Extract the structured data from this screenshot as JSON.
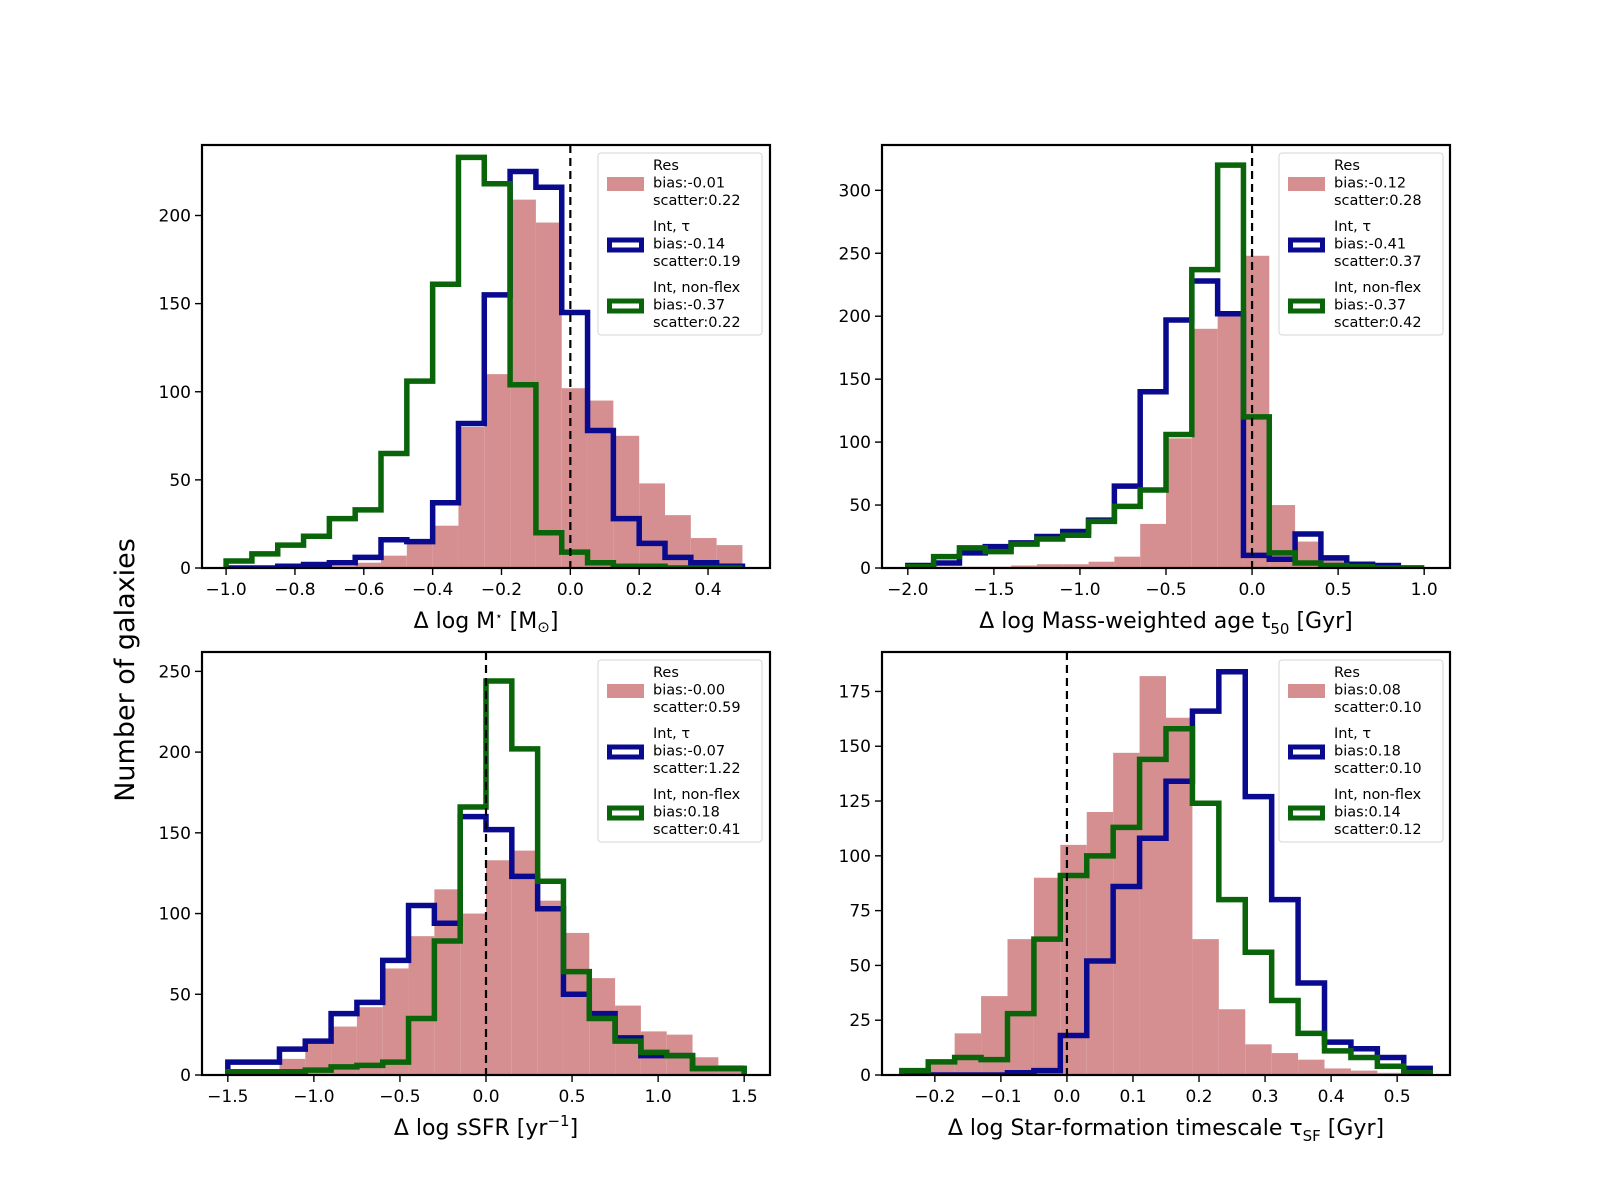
{
  "figure": {
    "ylabel": "Number of galaxies",
    "colors": {
      "res": "#d68f90",
      "int_tau": "#0a0a8f",
      "int_nonflex": "#0a640a"
    }
  },
  "chart_data": [
    {
      "type": "histogram",
      "id": "mstar",
      "xlabel": "Δ log M⋆ [M⊙]",
      "xlim": [
        -1.07,
        0.58
      ],
      "ylim": [
        0,
        240
      ],
      "xticks": [
        -1.0,
        -0.8,
        -0.6,
        -0.4,
        -0.2,
        0.0,
        0.2,
        0.4
      ],
      "xtick_labels": [
        "−1.0",
        "−0.8",
        "−0.6",
        "−0.4",
        "−0.2",
        "0.0",
        "0.2",
        "0.4"
      ],
      "yticks": [
        0,
        50,
        100,
        150,
        200
      ],
      "ytick_labels": [
        "0",
        "50",
        "100",
        "150",
        "200"
      ],
      "vline": 0.0,
      "bin_edges": [
        -1.0,
        -0.925,
        -0.85,
        -0.775,
        -0.7,
        -0.625,
        -0.55,
        -0.475,
        -0.4,
        -0.325,
        -0.25,
        -0.175,
        -0.1,
        -0.025,
        0.05,
        0.125,
        0.2,
        0.275,
        0.35,
        0.425,
        0.5
      ],
      "series": [
        {
          "name": "Res",
          "style": "filled",
          "color": "#d68f90",
          "bias": "bias:-0.01",
          "scatter": "scatter:0.22",
          "values": [
            0,
            0,
            0,
            0,
            1,
            3,
            7,
            14,
            24,
            80,
            110,
            209,
            196,
            102,
            95,
            75,
            48,
            30,
            17,
            13
          ]
        },
        {
          "name": "Int, τ",
          "style": "step",
          "color": "#0a0a8f",
          "bias": "bias:-0.14",
          "scatter": "scatter:0.19",
          "values": [
            0,
            0,
            1,
            2,
            3,
            6,
            16,
            15,
            37,
            82,
            155,
            225,
            216,
            145,
            78,
            28,
            14,
            6,
            3,
            1
          ]
        },
        {
          "name": "Int, non-flex",
          "style": "step",
          "color": "#0a640a",
          "bias": "bias:-0.37",
          "scatter": "scatter:0.22",
          "values": [
            4,
            8,
            13,
            18,
            28,
            33,
            65,
            106,
            161,
            233,
            218,
            104,
            20,
            9,
            3,
            1,
            1,
            0,
            0,
            0
          ]
        }
      ]
    },
    {
      "type": "histogram",
      "id": "age",
      "xlabel": "Δ log Mass-weighted age t50 [Gyr]",
      "xlim": [
        -2.15,
        1.15
      ],
      "ylim": [
        0,
        336
      ],
      "xticks": [
        -2.0,
        -1.5,
        -1.0,
        -0.5,
        0.0,
        0.5,
        1.0
      ],
      "xtick_labels": [
        "−2.0",
        "−1.5",
        "−1.0",
        "−0.5",
        "0.0",
        "0.5",
        "1.0"
      ],
      "yticks": [
        0,
        50,
        100,
        150,
        200,
        250,
        300
      ],
      "ytick_labels": [
        "0",
        "50",
        "100",
        "150",
        "200",
        "250",
        "300"
      ],
      "vline": 0.0,
      "bin_edges": [
        -2.0,
        -1.85,
        -1.7,
        -1.55,
        -1.4,
        -1.25,
        -1.1,
        -0.95,
        -0.8,
        -0.65,
        -0.5,
        -0.35,
        -0.2,
        -0.05,
        0.1,
        0.25,
        0.4,
        0.55,
        0.7,
        0.85,
        1.0
      ],
      "series": [
        {
          "name": "Res",
          "style": "filled",
          "color": "#d68f90",
          "bias": "bias:-0.12",
          "scatter": "scatter:0.28",
          "values": [
            0,
            1,
            1,
            1,
            2,
            3,
            3,
            5,
            9,
            35,
            103,
            190,
            200,
            248,
            50,
            21,
            8,
            5,
            3,
            1
          ]
        },
        {
          "name": "Int, τ",
          "style": "step",
          "color": "#0a0a8f",
          "bias": "bias:-0.41",
          "scatter": "scatter:0.37",
          "values": [
            2,
            4,
            12,
            17,
            20,
            25,
            29,
            38,
            65,
            140,
            197,
            228,
            202,
            10,
            7,
            27,
            8,
            3,
            2,
            0
          ]
        },
        {
          "name": "Int, non-flex",
          "style": "step",
          "color": "#0a640a",
          "bias": "bias:-0.37",
          "scatter": "scatter:0.42",
          "values": [
            1,
            9,
            16,
            13,
            19,
            23,
            26,
            37,
            49,
            62,
            106,
            237,
            320,
            120,
            12,
            4,
            2,
            1,
            0,
            0
          ]
        }
      ]
    },
    {
      "type": "histogram",
      "id": "ssfr",
      "xlabel": "Δ log sSFR [yr−1]",
      "xlim": [
        -1.65,
        1.65
      ],
      "ylim": [
        0,
        262
      ],
      "xticks": [
        -1.5,
        -1.0,
        -0.5,
        0.0,
        0.5,
        1.0,
        1.5
      ],
      "xtick_labels": [
        "−1.5",
        "−1.0",
        "−0.5",
        "0.0",
        "0.5",
        "1.0",
        "1.5"
      ],
      "yticks": [
        0,
        50,
        100,
        150,
        200,
        250
      ],
      "ytick_labels": [
        "0",
        "50",
        "100",
        "150",
        "200",
        "250"
      ],
      "vline": 0.0,
      "bin_edges": [
        -1.5,
        -1.35,
        -1.2,
        -1.05,
        -0.9,
        -0.75,
        -0.6,
        -0.45,
        -0.3,
        -0.15,
        0.0,
        0.15,
        0.3,
        0.45,
        0.6,
        0.75,
        0.9,
        1.05,
        1.2,
        1.35,
        1.5
      ],
      "series": [
        {
          "name": "Res",
          "style": "filled",
          "color": "#d68f90",
          "bias": "bias:-0.00",
          "scatter": "scatter:0.59",
          "values": [
            2,
            3,
            10,
            20,
            30,
            42,
            66,
            86,
            115,
            100,
            133,
            139,
            108,
            88,
            60,
            43,
            27,
            25,
            11,
            6
          ]
        },
        {
          "name": "Int, τ",
          "style": "step",
          "color": "#0a0a8f",
          "bias": "bias:-0.07",
          "scatter": "scatter:1.22",
          "values": [
            8,
            8,
            16,
            21,
            38,
            45,
            71,
            105,
            94,
            160,
            152,
            123,
            103,
            50,
            38,
            23,
            12,
            12,
            4,
            4
          ]
        },
        {
          "name": "Int, non-flex",
          "style": "step",
          "color": "#0a640a",
          "bias": "bias:0.18",
          "scatter": "scatter:0.41",
          "values": [
            2,
            2,
            2,
            3,
            5,
            6,
            8,
            35,
            83,
            166,
            244,
            202,
            120,
            64,
            35,
            21,
            14,
            12,
            4,
            4
          ]
        }
      ]
    },
    {
      "type": "histogram",
      "id": "tau",
      "xlabel": "Δ log Star-formation timescale τSF [Gyr]",
      "xlim": [
        -0.28,
        0.58
      ],
      "ylim": [
        0,
        193
      ],
      "xticks": [
        -0.2,
        -0.1,
        0.0,
        0.1,
        0.2,
        0.3,
        0.4,
        0.5
      ],
      "xtick_labels": [
        "−0.2",
        "−0.1",
        "0.0",
        "0.1",
        "0.2",
        "0.3",
        "0.4",
        "0.5"
      ],
      "yticks": [
        0,
        25,
        50,
        75,
        100,
        125,
        150,
        175
      ],
      "ytick_labels": [
        "0",
        "25",
        "50",
        "75",
        "100",
        "125",
        "150",
        "175"
      ],
      "vline": 0.0,
      "bin_edges": [
        -0.25,
        -0.21,
        -0.17,
        -0.13,
        -0.09,
        -0.05,
        -0.01,
        0.03,
        0.07,
        0.11,
        0.15,
        0.19,
        0.23,
        0.27,
        0.31,
        0.35,
        0.39,
        0.43,
        0.47,
        0.51,
        0.55
      ],
      "series": [
        {
          "name": "Res",
          "style": "filled",
          "color": "#d68f90",
          "bias": "bias:0.08",
          "scatter": "scatter:0.10",
          "values": [
            1,
            5,
            19,
            36,
            62,
            90,
            105,
            120,
            147,
            182,
            163,
            62,
            30,
            14,
            10,
            7,
            3,
            2,
            1,
            0
          ]
        },
        {
          "name": "Int, τ",
          "style": "step",
          "color": "#0a0a8f",
          "bias": "bias:0.18",
          "scatter": "scatter:0.10",
          "values": [
            0,
            0,
            0,
            0,
            1,
            2,
            18,
            52,
            86,
            108,
            134,
            166,
            184,
            127,
            80,
            42,
            15,
            12,
            8,
            3
          ]
        },
        {
          "name": "Int, non-flex",
          "style": "step",
          "color": "#0a640a",
          "bias": "bias:0.14",
          "scatter": "scatter:0.12",
          "values": [
            2,
            6,
            8,
            7,
            28,
            62,
            91,
            100,
            113,
            144,
            158,
            124,
            80,
            56,
            34,
            19,
            11,
            8,
            4,
            1
          ]
        }
      ]
    }
  ]
}
